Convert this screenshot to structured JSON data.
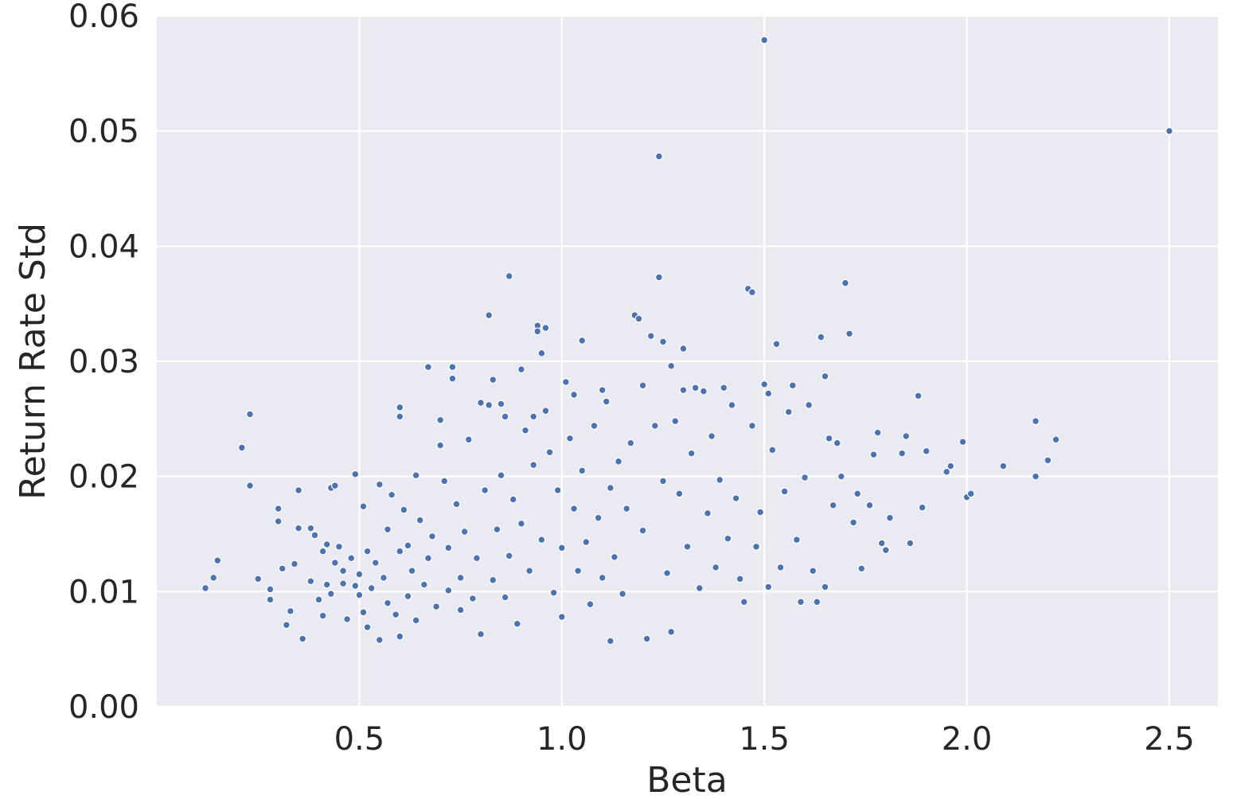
{
  "chart_data": {
    "type": "scatter",
    "title": "",
    "xlabel": "Beta",
    "ylabel": "Return Rate Std",
    "xlim": [
      0.0,
      2.62
    ],
    "ylim": [
      0.0,
      0.06
    ],
    "x_ticks": [
      0.5,
      1.0,
      1.5,
      2.0,
      2.5
    ],
    "x_tick_labels": [
      "0.5",
      "1.0",
      "1.5",
      "2.0",
      "2.5"
    ],
    "y_ticks": [
      0.0,
      0.01,
      0.02,
      0.03,
      0.04,
      0.05,
      0.06
    ],
    "y_tick_labels": [
      "0.00",
      "0.01",
      "0.02",
      "0.03",
      "0.04",
      "0.05",
      "0.06"
    ],
    "grid": true,
    "point_color": "#4c72b0",
    "background_color": "#eaeaf2",
    "series": [
      {
        "points": [
          [
            0.12,
            0.0103
          ],
          [
            0.14,
            0.0112
          ],
          [
            0.15,
            0.0127
          ],
          [
            0.21,
            0.0225
          ],
          [
            0.23,
            0.0254
          ],
          [
            0.23,
            0.0192
          ],
          [
            0.25,
            0.0111
          ],
          [
            0.28,
            0.0102
          ],
          [
            0.28,
            0.0093
          ],
          [
            0.3,
            0.0172
          ],
          [
            0.3,
            0.0161
          ],
          [
            0.31,
            0.012
          ],
          [
            0.32,
            0.0071
          ],
          [
            0.33,
            0.0083
          ],
          [
            0.34,
            0.0124
          ],
          [
            0.35,
            0.0155
          ],
          [
            0.35,
            0.0188
          ],
          [
            0.36,
            0.0059
          ],
          [
            0.38,
            0.0109
          ],
          [
            0.38,
            0.0155
          ],
          [
            0.39,
            0.0149
          ],
          [
            0.4,
            0.0093
          ],
          [
            0.41,
            0.0135
          ],
          [
            0.41,
            0.0079
          ],
          [
            0.42,
            0.0141
          ],
          [
            0.42,
            0.0106
          ],
          [
            0.43,
            0.0098
          ],
          [
            0.43,
            0.019
          ],
          [
            0.44,
            0.0125
          ],
          [
            0.44,
            0.0192
          ],
          [
            0.45,
            0.0139
          ],
          [
            0.46,
            0.0118
          ],
          [
            0.46,
            0.0107
          ],
          [
            0.47,
            0.0076
          ],
          [
            0.48,
            0.0129
          ],
          [
            0.49,
            0.0105
          ],
          [
            0.49,
            0.0202
          ],
          [
            0.5,
            0.0115
          ],
          [
            0.5,
            0.0097
          ],
          [
            0.51,
            0.0174
          ],
          [
            0.51,
            0.0082
          ],
          [
            0.52,
            0.0069
          ],
          [
            0.52,
            0.0135
          ],
          [
            0.53,
            0.0103
          ],
          [
            0.54,
            0.0125
          ],
          [
            0.55,
            0.0193
          ],
          [
            0.55,
            0.0058
          ],
          [
            0.56,
            0.0112
          ],
          [
            0.57,
            0.009
          ],
          [
            0.57,
            0.0154
          ],
          [
            0.58,
            0.0184
          ],
          [
            0.59,
            0.008
          ],
          [
            0.6,
            0.0135
          ],
          [
            0.6,
            0.026
          ],
          [
            0.6,
            0.0252
          ],
          [
            0.6,
            0.0061
          ],
          [
            0.61,
            0.0171
          ],
          [
            0.62,
            0.0096
          ],
          [
            0.62,
            0.014
          ],
          [
            0.63,
            0.0118
          ],
          [
            0.64,
            0.0201
          ],
          [
            0.64,
            0.0075
          ],
          [
            0.65,
            0.0162
          ],
          [
            0.66,
            0.0106
          ],
          [
            0.67,
            0.0295
          ],
          [
            0.67,
            0.0129
          ],
          [
            0.68,
            0.0148
          ],
          [
            0.69,
            0.0087
          ],
          [
            0.7,
            0.0227
          ],
          [
            0.7,
            0.0249
          ],
          [
            0.71,
            0.0196
          ],
          [
            0.72,
            0.0101
          ],
          [
            0.72,
            0.0138
          ],
          [
            0.73,
            0.0285
          ],
          [
            0.73,
            0.0295
          ],
          [
            0.74,
            0.0176
          ],
          [
            0.75,
            0.0112
          ],
          [
            0.75,
            0.0084
          ],
          [
            0.76,
            0.0152
          ],
          [
            0.77,
            0.0232
          ],
          [
            0.78,
            0.0094
          ],
          [
            0.79,
            0.0129
          ],
          [
            0.8,
            0.0264
          ],
          [
            0.8,
            0.0063
          ],
          [
            0.81,
            0.0188
          ],
          [
            0.82,
            0.034
          ],
          [
            0.82,
            0.0262
          ],
          [
            0.83,
            0.0284
          ],
          [
            0.83,
            0.011
          ],
          [
            0.84,
            0.0154
          ],
          [
            0.85,
            0.0263
          ],
          [
            0.85,
            0.0201
          ],
          [
            0.86,
            0.0252
          ],
          [
            0.86,
            0.0095
          ],
          [
            0.87,
            0.0374
          ],
          [
            0.87,
            0.0131
          ],
          [
            0.88,
            0.018
          ],
          [
            0.89,
            0.0072
          ],
          [
            0.9,
            0.0293
          ],
          [
            0.9,
            0.0159
          ],
          [
            0.91,
            0.024
          ],
          [
            0.92,
            0.0118
          ],
          [
            0.93,
            0.021
          ],
          [
            0.93,
            0.0252
          ],
          [
            0.94,
            0.0331
          ],
          [
            0.94,
            0.0326
          ],
          [
            0.95,
            0.0145
          ],
          [
            0.95,
            0.0307
          ],
          [
            0.96,
            0.0329
          ],
          [
            0.96,
            0.0257
          ],
          [
            0.97,
            0.0221
          ],
          [
            0.98,
            0.0099
          ],
          [
            0.99,
            0.0188
          ],
          [
            1.0,
            0.0138
          ],
          [
            1.0,
            0.0078
          ],
          [
            1.01,
            0.0282
          ],
          [
            1.02,
            0.0233
          ],
          [
            1.03,
            0.0172
          ],
          [
            1.03,
            0.0271
          ],
          [
            1.04,
            0.0118
          ],
          [
            1.05,
            0.0318
          ],
          [
            1.05,
            0.0205
          ],
          [
            1.06,
            0.0143
          ],
          [
            1.07,
            0.0089
          ],
          [
            1.08,
            0.0244
          ],
          [
            1.09,
            0.0164
          ],
          [
            1.1,
            0.0275
          ],
          [
            1.1,
            0.0112
          ],
          [
            1.11,
            0.0265
          ],
          [
            1.12,
            0.019
          ],
          [
            1.12,
            0.0057
          ],
          [
            1.13,
            0.013
          ],
          [
            1.14,
            0.0213
          ],
          [
            1.15,
            0.0098
          ],
          [
            1.16,
            0.0172
          ],
          [
            1.17,
            0.0229
          ],
          [
            1.18,
            0.034
          ],
          [
            1.19,
            0.0337
          ],
          [
            1.2,
            0.0279
          ],
          [
            1.2,
            0.0153
          ],
          [
            1.21,
            0.0059
          ],
          [
            1.22,
            0.0322
          ],
          [
            1.23,
            0.0244
          ],
          [
            1.24,
            0.0373
          ],
          [
            1.24,
            0.0478
          ],
          [
            1.25,
            0.0317
          ],
          [
            1.25,
            0.0196
          ],
          [
            1.26,
            0.0116
          ],
          [
            1.27,
            0.0296
          ],
          [
            1.27,
            0.0065
          ],
          [
            1.28,
            0.0248
          ],
          [
            1.29,
            0.0185
          ],
          [
            1.3,
            0.0311
          ],
          [
            1.3,
            0.0275
          ],
          [
            1.31,
            0.0139
          ],
          [
            1.32,
            0.022
          ],
          [
            1.33,
            0.0277
          ],
          [
            1.34,
            0.0103
          ],
          [
            1.35,
            0.0274
          ],
          [
            1.36,
            0.0168
          ],
          [
            1.37,
            0.0235
          ],
          [
            1.38,
            0.0121
          ],
          [
            1.39,
            0.0197
          ],
          [
            1.4,
            0.0277
          ],
          [
            1.41,
            0.0146
          ],
          [
            1.42,
            0.0262
          ],
          [
            1.43,
            0.0181
          ],
          [
            1.44,
            0.0111
          ],
          [
            1.45,
            0.0091
          ],
          [
            1.46,
            0.0363
          ],
          [
            1.47,
            0.036
          ],
          [
            1.47,
            0.0244
          ],
          [
            1.48,
            0.0139
          ],
          [
            1.49,
            0.0169
          ],
          [
            1.5,
            0.0579
          ],
          [
            1.5,
            0.028
          ],
          [
            1.51,
            0.0272
          ],
          [
            1.51,
            0.0104
          ],
          [
            1.52,
            0.0223
          ],
          [
            1.53,
            0.0315
          ],
          [
            1.54,
            0.0121
          ],
          [
            1.55,
            0.0187
          ],
          [
            1.56,
            0.0256
          ],
          [
            1.57,
            0.0279
          ],
          [
            1.58,
            0.0145
          ],
          [
            1.59,
            0.0091
          ],
          [
            1.6,
            0.0199
          ],
          [
            1.61,
            0.0262
          ],
          [
            1.62,
            0.0118
          ],
          [
            1.63,
            0.0091
          ],
          [
            1.64,
            0.0321
          ],
          [
            1.65,
            0.0287
          ],
          [
            1.65,
            0.0104
          ],
          [
            1.66,
            0.0233
          ],
          [
            1.67,
            0.0175
          ],
          [
            1.68,
            0.0229
          ],
          [
            1.69,
            0.02
          ],
          [
            1.7,
            0.0368
          ],
          [
            1.71,
            0.0324
          ],
          [
            1.72,
            0.016
          ],
          [
            1.73,
            0.0185
          ],
          [
            1.74,
            0.012
          ],
          [
            1.76,
            0.0175
          ],
          [
            1.77,
            0.0219
          ],
          [
            1.78,
            0.0238
          ],
          [
            1.79,
            0.0142
          ],
          [
            1.8,
            0.0136
          ],
          [
            1.81,
            0.0164
          ],
          [
            1.84,
            0.022
          ],
          [
            1.85,
            0.0235
          ],
          [
            1.86,
            0.0142
          ],
          [
            1.88,
            0.027
          ],
          [
            1.89,
            0.0173
          ],
          [
            1.9,
            0.0222
          ],
          [
            1.95,
            0.0204
          ],
          [
            1.96,
            0.0209
          ],
          [
            1.99,
            0.023
          ],
          [
            2.0,
            0.0182
          ],
          [
            2.01,
            0.0185
          ],
          [
            2.09,
            0.0209
          ],
          [
            2.17,
            0.0248
          ],
          [
            2.17,
            0.02
          ],
          [
            2.2,
            0.0214
          ],
          [
            2.22,
            0.0232
          ],
          [
            2.5,
            0.05
          ]
        ]
      }
    ]
  }
}
